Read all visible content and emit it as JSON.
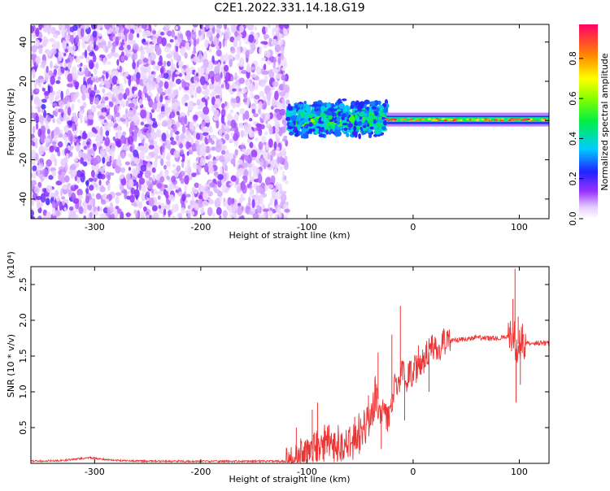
{
  "title": "C2E1.2022.331.14.18.G19",
  "chart_data": [
    {
      "type": "heatmap",
      "xlabel": "Height of straight line (km)",
      "ylabel": "Frequency (Hz)",
      "xlim": [
        -360,
        128
      ],
      "ylim": [
        -50,
        49
      ],
      "xticks": [
        -300,
        -200,
        -100,
        0,
        100
      ],
      "yticks": [
        -40,
        -20,
        0,
        20,
        40
      ],
      "colorbar": {
        "label": "Normalized spectral amplitude",
        "range": [
          0.0,
          0.97
        ],
        "ticks": [
          "0.0",
          "0.2",
          "0.4",
          "0.6",
          "0.8"
        ]
      },
      "regions": [
        {
          "name": "scattered low-amplitude noise",
          "x_range": [
            -360,
            -118
          ],
          "freq_range": [
            -50,
            49
          ],
          "amplitude": [
            0.05,
            0.2
          ]
        },
        {
          "name": "noisy signal band",
          "x_range": [
            -118,
            -25
          ],
          "freq_range": [
            -10,
            10
          ],
          "amplitude": [
            0.2,
            0.6
          ]
        },
        {
          "name": "stable carrier line",
          "x_range": [
            -25,
            128
          ],
          "freq_range": [
            -3,
            4
          ],
          "center_freq": 0.5,
          "amplitude": [
            0.3,
            0.95
          ]
        }
      ]
    },
    {
      "type": "line",
      "xlabel": "Height of straight line (km)",
      "ylabel": "SNR (10 * v/v)",
      "y_multiplier": "(x10⁴)",
      "xlim": [
        -360,
        128
      ],
      "ylim": [
        0,
        2.75
      ],
      "xticks": [
        -300,
        -200,
        -100,
        0,
        100
      ],
      "yticks": [
        0.5,
        1.0,
        1.5,
        2.0,
        2.5
      ],
      "series": [
        {
          "color": "#ee3333",
          "x": [
            -360,
            -330,
            -305,
            -280,
            -250,
            -200,
            -150,
            -120,
            -110,
            -100,
            -90,
            -80,
            -70,
            -60,
            -50,
            -40,
            -35,
            -30,
            -25,
            -20,
            -15,
            -10,
            -5,
            0,
            5,
            10,
            15,
            20,
            25,
            30,
            40,
            50,
            60,
            70,
            80,
            88,
            92,
            95,
            97,
            100,
            103,
            110,
            120,
            128
          ],
          "y": [
            0.03,
            0.04,
            0.08,
            0.04,
            0.03,
            0.03,
            0.03,
            0.03,
            0.05,
            0.15,
            0.25,
            0.3,
            0.25,
            0.3,
            0.4,
            0.6,
            1.0,
            0.75,
            0.6,
            0.9,
            1.15,
            1.25,
            1.2,
            1.3,
            1.35,
            1.45,
            1.55,
            1.6,
            1.65,
            1.7,
            1.72,
            1.74,
            1.76,
            1.75,
            1.75,
            1.78,
            1.7,
            1.8,
            1.6,
            1.7,
            1.65,
            1.68,
            1.68,
            1.68
          ],
          "spikes": [
            {
              "x": -110,
              "y": 0.5
            },
            {
              "x": -95,
              "y": 0.75
            },
            {
              "x": -90,
              "y": 0.85
            },
            {
              "x": -55,
              "y": 0.65
            },
            {
              "x": -42,
              "y": 0.95
            },
            {
              "x": -33,
              "y": 1.55
            },
            {
              "x": -30,
              "y": 0.2
            },
            {
              "x": -20,
              "y": 1.8
            },
            {
              "x": -12,
              "y": 2.2
            },
            {
              "x": -8,
              "y": 0.6
            },
            {
              "x": 5,
              "y": 1.65
            },
            {
              "x": 15,
              "y": 1.0
            },
            {
              "x": 91,
              "y": 1.9
            },
            {
              "x": 94,
              "y": 2.3
            },
            {
              "x": 96,
              "y": 2.72
            },
            {
              "x": 97,
              "y": 0.85
            },
            {
              "x": 99,
              "y": 2.05
            },
            {
              "x": 101,
              "y": 1.1
            },
            {
              "x": 103,
              "y": 1.95
            }
          ]
        }
      ]
    }
  ]
}
